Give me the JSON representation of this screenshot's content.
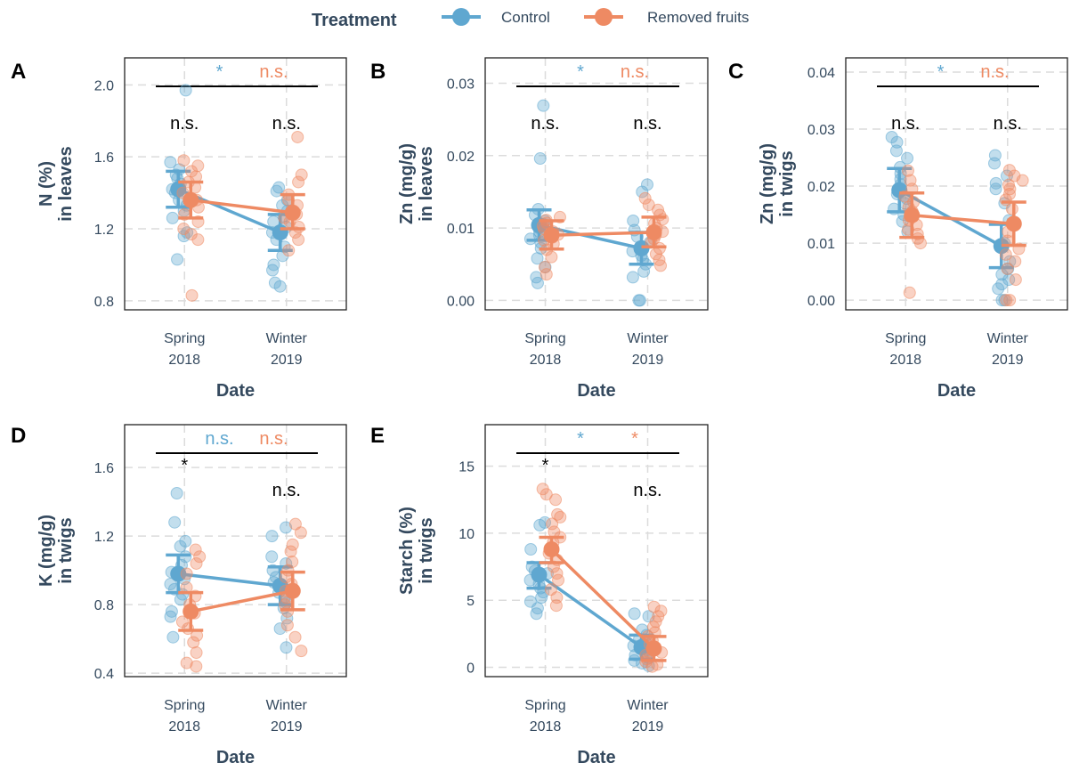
{
  "legend": {
    "title": "Treatment",
    "items": [
      {
        "label": "Control",
        "color": "#5fa7d0"
      },
      {
        "label": "Removed fruits",
        "color": "#ee8a63"
      }
    ]
  },
  "colors": {
    "control": "#5fa7d0",
    "removed": "#ee8a63",
    "axis_text": "#34495e"
  },
  "chart_data": [
    {
      "panel": "A",
      "type": "scatter",
      "ylabel": [
        "N (%)",
        "in leaves"
      ],
      "xlabel": "Date",
      "categories": [
        [
          "Spring",
          "2018"
        ],
        [
          "Winter",
          "2019"
        ]
      ],
      "ylim": [
        0.75,
        2.15
      ],
      "yticks": [
        "0.8",
        "1.2",
        "1.6",
        "2.0"
      ],
      "ytick_values": [
        0.8,
        1.2,
        1.6,
        2.0
      ],
      "grid": true,
      "top_labels": {
        "control": "*",
        "removed": "n.s."
      },
      "comparisons": [
        "n.s.",
        "n.s."
      ],
      "series": [
        {
          "name": "Control",
          "means": [
            1.42,
            1.18
          ],
          "lower": [
            1.32,
            1.08
          ],
          "upper": [
            1.52,
            1.28
          ],
          "points": [
            [
              1.97,
              1.57,
              1.53,
              1.5,
              1.48,
              1.45,
              1.42,
              1.4,
              1.36,
              1.33,
              1.3,
              1.26,
              1.18,
              1.16,
              1.03
            ],
            [
              1.43,
              1.41,
              1.36,
              1.33,
              1.3,
              1.27,
              1.24,
              1.21,
              1.18,
              1.14,
              1.1,
              1.05,
              1.0,
              0.97,
              0.9,
              0.88
            ]
          ]
        },
        {
          "name": "Removed fruits",
          "means": [
            1.36,
            1.29
          ],
          "lower": [
            1.26,
            1.2
          ],
          "upper": [
            1.46,
            1.39
          ],
          "points": [
            [
              1.58,
              1.55,
              1.52,
              1.49,
              1.46,
              1.43,
              1.4,
              1.36,
              1.32,
              1.28,
              1.24,
              1.2,
              1.17,
              1.14,
              0.83
            ],
            [
              1.71,
              1.5,
              1.46,
              1.39,
              1.36,
              1.33,
              1.3,
              1.28,
              1.26,
              1.24,
              1.21,
              1.18,
              1.14,
              1.08
            ]
          ]
        }
      ]
    },
    {
      "panel": "B",
      "type": "scatter",
      "ylabel": [
        "Zn (mg/g)",
        "in leaves"
      ],
      "xlabel": "Date",
      "categories": [
        [
          "Spring",
          "2018"
        ],
        [
          "Winter",
          "2019"
        ]
      ],
      "ylim": [
        -0.0013,
        0.0335
      ],
      "yticks": [
        "0.00",
        "0.01",
        "0.02",
        "0.03"
      ],
      "ytick_values": [
        0,
        0.01,
        0.02,
        0.03
      ],
      "grid": true,
      "top_labels": {
        "control": "*",
        "removed": "n.s."
      },
      "comparisons": [
        "n.s.",
        "n.s."
      ],
      "series": [
        {
          "name": "Control",
          "means": [
            0.0104,
            0.0072
          ],
          "lower": [
            0.0083,
            0.005
          ],
          "upper": [
            0.0125,
            0.0094
          ],
          "points": [
            [
              0.0269,
              0.0196,
              0.0126,
              0.0118,
              0.011,
              0.0105,
              0.01,
              0.0095,
              0.009,
              0.0085,
              0.008,
              0.0072,
              0.0058,
              0.0046,
              0.0032,
              0.0024
            ],
            [
              0.016,
              0.015,
              0.011,
              0.0097,
              0.0088,
              0.008,
              0.0074,
              0.0068,
              0.0062,
              0.0056,
              0.005,
              0.004,
              0.0032,
              0.0,
              0.0
            ]
          ]
        },
        {
          "name": "Removed fruits",
          "means": [
            0.009,
            0.0094
          ],
          "lower": [
            0.0071,
            0.0074
          ],
          "upper": [
            0.011,
            0.0115
          ],
          "points": [
            [
              0.0115,
              0.0111,
              0.0107,
              0.0103,
              0.0099,
              0.0095,
              0.0091,
              0.0087,
              0.0083,
              0.0078,
              0.007,
              0.006,
              0.0046,
              0.0036
            ],
            [
              0.0141,
              0.0132,
              0.0125,
              0.0118,
              0.0112,
              0.0106,
              0.01,
              0.0095,
              0.009,
              0.0085,
              0.008,
              0.0072,
              0.0064,
              0.0056,
              0.0048
            ]
          ]
        }
      ]
    },
    {
      "panel": "C",
      "type": "scatter",
      "ylabel": [
        "Zn (mg/g)",
        "in twigs"
      ],
      "xlabel": "Date",
      "categories": [
        [
          "Spring",
          "2018"
        ],
        [
          "Winter",
          "2019"
        ]
      ],
      "ylim": [
        -0.0017,
        0.0425
      ],
      "yticks": [
        "0.00",
        "0.01",
        "0.02",
        "0.03",
        "0.04"
      ],
      "ytick_values": [
        0,
        0.01,
        0.02,
        0.03,
        0.04
      ],
      "grid": true,
      "top_labels": {
        "control": "*",
        "removed": "n.s."
      },
      "comparisons": [
        "n.s.",
        "n.s."
      ],
      "series": [
        {
          "name": "Control",
          "means": [
            0.0193,
            0.0095
          ],
          "lower": [
            0.0155,
            0.0057
          ],
          "upper": [
            0.0231,
            0.0133
          ],
          "points": [
            [
              0.0286,
              0.0277,
              0.0262,
              0.0249,
              0.0233,
              0.0222,
              0.0212,
              0.0203,
              0.0194,
              0.0186,
              0.0178,
              0.017,
              0.016,
              0.015,
              0.0138,
              0.012
            ],
            [
              0.0254,
              0.024,
              0.0218,
              0.0205,
              0.0195,
              0.017,
              0.014,
              0.01,
              0.0068,
              0.0055,
              0.0045,
              0.0036,
              0.0028,
              0.002,
              0.0,
              0.0
            ]
          ]
        },
        {
          "name": "Removed fruits",
          "means": [
            0.0149,
            0.0134
          ],
          "lower": [
            0.011,
            0.0096
          ],
          "upper": [
            0.0188,
            0.0172
          ],
          "points": [
            [
              0.0227,
              0.021,
              0.0195,
              0.0182,
              0.0172,
              0.0163,
              0.0155,
              0.0147,
              0.014,
              0.0132,
              0.0124,
              0.0116,
              0.0108,
              0.01,
              0.0013
            ],
            [
              0.0228,
              0.0218,
              0.021,
              0.0202,
              0.0195,
              0.0186,
              0.0176,
              0.016,
              0.012,
              0.0104,
              0.009,
              0.008,
              0.0068,
              0.0055,
              0.0036,
              0.0,
              0.0
            ]
          ]
        }
      ]
    },
    {
      "panel": "D",
      "type": "scatter",
      "ylabel": [
        "K (mg/g)",
        "in twigs"
      ],
      "xlabel": "Date",
      "categories": [
        [
          "Spring",
          "2018"
        ],
        [
          "Winter",
          "2019"
        ]
      ],
      "ylim": [
        0.38,
        1.85
      ],
      "yticks": [
        "0.4",
        "0.8",
        "1.2",
        "1.6"
      ],
      "ytick_values": [
        0.4,
        0.8,
        1.2,
        1.6
      ],
      "grid": true,
      "top_labels": {
        "control": "n.s.",
        "removed": "n.s."
      },
      "comparisons": [
        "*",
        "n.s."
      ],
      "series": [
        {
          "name": "Control",
          "means": [
            0.98,
            0.91
          ],
          "lower": [
            0.87,
            0.8
          ],
          "upper": [
            1.09,
            1.02
          ],
          "points": [
            [
              1.45,
              1.28,
              1.17,
              1.14,
              1.08,
              1.03,
              0.99,
              0.95,
              0.92,
              0.89,
              0.86,
              0.83,
              0.76,
              0.73,
              0.61
            ],
            [
              1.25,
              1.2,
              1.08,
              1.04,
              1.0,
              0.96,
              0.93,
              0.9,
              0.87,
              0.84,
              0.81,
              0.78,
              0.72,
              0.66,
              0.55
            ]
          ]
        },
        {
          "name": "Removed fruits",
          "means": [
            0.76,
            0.88
          ],
          "lower": [
            0.65,
            0.77
          ],
          "upper": [
            0.87,
            0.99
          ],
          "points": [
            [
              1.12,
              1.08,
              1.04,
              0.98,
              0.9,
              0.85,
              0.8,
              0.75,
              0.7,
              0.66,
              0.62,
              0.58,
              0.52,
              0.46,
              0.44
            ],
            [
              1.27,
              1.22,
              1.15,
              1.11,
              1.05,
              1.0,
              0.96,
              0.92,
              0.88,
              0.84,
              0.8,
              0.76,
              0.68,
              0.61,
              0.53
            ]
          ]
        }
      ]
    },
    {
      "panel": "E",
      "type": "scatter",
      "ylabel": [
        "Starch (%)",
        "in twigs"
      ],
      "xlabel": "Date",
      "categories": [
        [
          "Spring",
          "2018"
        ],
        [
          "Winter",
          "2019"
        ]
      ],
      "ylim": [
        -0.7,
        18.1
      ],
      "yticks": [
        "0",
        "5",
        "10",
        "15"
      ],
      "ytick_values": [
        0,
        5,
        10,
        15
      ],
      "grid": true,
      "top_labels": {
        "control": "*",
        "removed": "*"
      },
      "comparisons": [
        "*",
        "n.s."
      ],
      "series": [
        {
          "name": "Control",
          "means": [
            6.9,
            1.5
          ],
          "lower": [
            5.9,
            0.6
          ],
          "upper": [
            7.8,
            2.4
          ],
          "points": [
            [
              10.8,
              10.6,
              8.8,
              7.5,
              7.2,
              7.0,
              6.8,
              6.5,
              6.2,
              5.9,
              5.6,
              5.2,
              4.9,
              4.4,
              4.0
            ],
            [
              4.0,
              3.8,
              2.8,
              2.4,
              2.1,
              1.8,
              1.6,
              1.3,
              1.1,
              0.9,
              0.7,
              0.5,
              0.3,
              0.1
            ]
          ]
        },
        {
          "name": "Removed fruits",
          "means": [
            8.8,
            1.4
          ],
          "lower": [
            7.8,
            0.5
          ],
          "upper": [
            9.7,
            2.3
          ],
          "points": [
            [
              13.3,
              12.9,
              12.5,
              11.4,
              11.2,
              10.7,
              10.1,
              9.7,
              9.3,
              8.9,
              8.5,
              8.0,
              7.5,
              7.0,
              6.5,
              5.8,
              5.2,
              4.6
            ],
            [
              4.5,
              4.2,
              3.8,
              3.4,
              3.0,
              2.6,
              2.3,
              2.0,
              1.7,
              1.4,
              1.1,
              0.9,
              0.6,
              0.4,
              0.2,
              0.05
            ]
          ]
        }
      ]
    }
  ]
}
